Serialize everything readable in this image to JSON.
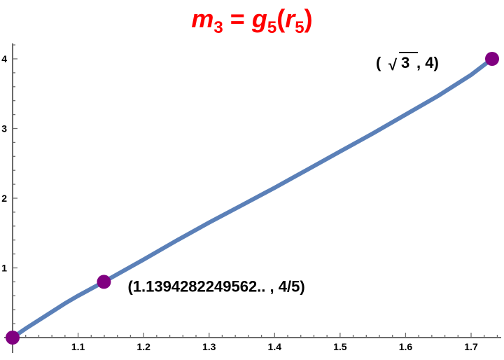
{
  "title": {
    "lhs_var": "m",
    "lhs_sub": "3",
    "equals": "=",
    "func": "g",
    "func_sub": "5",
    "open": "(",
    "arg_var": "r",
    "arg_sub": "5",
    "close": ")"
  },
  "colors": {
    "title": "#ff0000",
    "curve": "#5b80b8",
    "points": "#800080",
    "axis": "#6b6b6b"
  },
  "chart_data": {
    "type": "line",
    "title": "m3 = g5(r5)",
    "xlabel": "",
    "ylabel": "",
    "xlim": [
      1.0,
      1.75
    ],
    "ylim": [
      -0.05,
      4.2
    ],
    "grid": false,
    "x_ticks": [
      1.1,
      1.2,
      1.3,
      1.4,
      1.5,
      1.6,
      1.7
    ],
    "x_tick_labels": [
      "1.1",
      "1.2",
      "1.3",
      "1.4",
      "1.5",
      "1.6",
      "1.7"
    ],
    "y_ticks": [
      1,
      2,
      3,
      4
    ],
    "y_tick_labels": [
      "1",
      "2",
      "3",
      "4"
    ],
    "series": [
      {
        "x": [
          1.0,
          1.02,
          1.05,
          1.08,
          1.1,
          1.1394,
          1.2,
          1.25,
          1.3,
          1.35,
          1.4,
          1.45,
          1.5,
          1.55,
          1.6,
          1.65,
          1.7,
          1.7321
        ],
        "y": [
          0.0,
          0.13,
          0.31,
          0.49,
          0.6,
          0.8,
          1.12,
          1.39,
          1.65,
          1.9,
          2.15,
          2.41,
          2.67,
          2.93,
          3.2,
          3.47,
          3.77,
          4.0
        ]
      }
    ],
    "points": [
      {
        "x": 1.0,
        "y": 0.0,
        "label": ""
      },
      {
        "x": 1.1394282249562,
        "y": 0.8,
        "label": "(1.1394282249562.. , 4/5)"
      },
      {
        "x": 1.7320508,
        "y": 4.0,
        "label_open": "( ",
        "label_sqrt": "√",
        "label_rad": "3",
        "label_rest": " , 4)"
      }
    ]
  }
}
